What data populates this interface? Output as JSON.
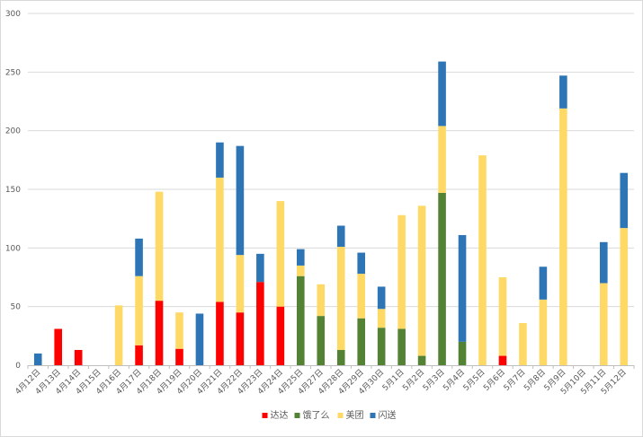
{
  "chart_data": {
    "type": "bar",
    "stacked": true,
    "categories": [
      "4月12日",
      "4月13日",
      "4月14日",
      "4月15日",
      "4月16日",
      "4月17日",
      "4月18日",
      "4月19日",
      "4月20日",
      "4月21日",
      "4月22日",
      "4月23日",
      "4月24日",
      "4月25日",
      "4月27日",
      "4月28日",
      "4月29日",
      "4月30日",
      "5月1日",
      "5月2日",
      "5月3日",
      "5月4日",
      "5月5日",
      "5月6日",
      "5月7日",
      "5月8日",
      "5月9日",
      "5月10日",
      "5月11日",
      "5月12日"
    ],
    "series": [
      {
        "name": "达达",
        "color": "#ff0000",
        "values": [
          0,
          31,
          13,
          0,
          0,
          17,
          55,
          14,
          0,
          54,
          45,
          71,
          50,
          0,
          0,
          0,
          0,
          0,
          0,
          0,
          0,
          0,
          0,
          8,
          0,
          0,
          0,
          0,
          0,
          0
        ]
      },
      {
        "name": "饿了么",
        "color": "#548235",
        "values": [
          0,
          0,
          0,
          0,
          0,
          0,
          0,
          0,
          0,
          0,
          0,
          0,
          0,
          76,
          42,
          13,
          40,
          32,
          31,
          8,
          147,
          20,
          0,
          0,
          0,
          0,
          0,
          0,
          0,
          0
        ]
      },
      {
        "name": "美团",
        "color": "#ffd966",
        "values": [
          0,
          0,
          0,
          0,
          51,
          59,
          93,
          31,
          0,
          106,
          49,
          0,
          90,
          9,
          27,
          88,
          38,
          16,
          97,
          128,
          57,
          0,
          179,
          67,
          36,
          56,
          219,
          0,
          70,
          117
        ]
      },
      {
        "name": "闪送",
        "color": "#2e75b6",
        "values": [
          10,
          0,
          0,
          0,
          0,
          32,
          0,
          0,
          44,
          30,
          93,
          24,
          0,
          14,
          0,
          18,
          18,
          19,
          0,
          0,
          55,
          91,
          0,
          0,
          0,
          28,
          28,
          0,
          35,
          47
        ]
      }
    ],
    "ylim": [
      0,
      300
    ],
    "yticks": [
      0,
      50,
      100,
      150,
      200,
      250,
      300
    ],
    "grid": true,
    "legend": "bottom",
    "xlabel": "",
    "ylabel": "",
    "title": ""
  }
}
